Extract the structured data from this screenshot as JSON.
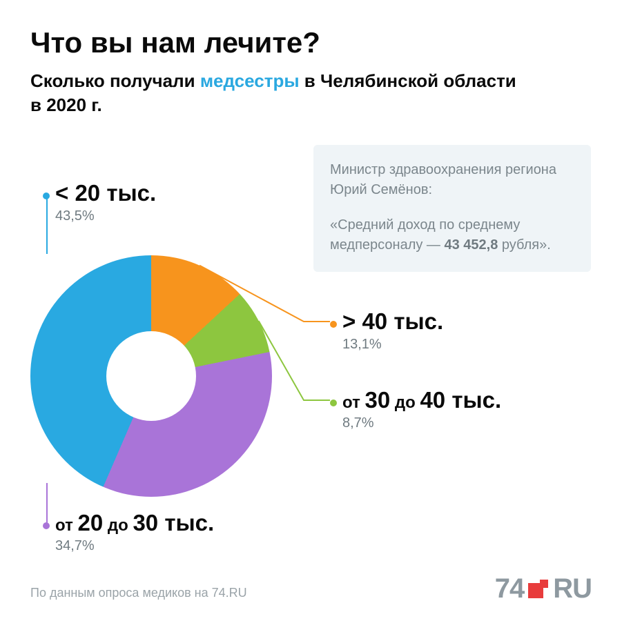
{
  "title": "Что вы нам лечите?",
  "subtitle_pre": "Сколько получали ",
  "subtitle_hl": "медсестры",
  "subtitle_post": " в Челябинской области в 2020 г.",
  "quote": {
    "attribution": "Министр здравоохранения региона Юрий Семёнов:",
    "text_pre": "«Средний доход по среднему медперсоналу — ",
    "figure": "43 452,8",
    "text_post": " рубля».",
    "bg_color": "#eff4f7",
    "text_color": "#7b868c"
  },
  "donut": {
    "type": "donut",
    "outer_radius": 175,
    "inner_radius": 65,
    "background_color": "#ffffff",
    "slices": [
      {
        "key": "lt20",
        "label_prefix": "",
        "label_big": "< 20 тыс.",
        "value": 43.5,
        "pct_label": "43,5%",
        "color": "#29a9e1"
      },
      {
        "key": "gt40",
        "label_prefix": "",
        "label_big": "> 40 тыс.",
        "value": 13.1,
        "pct_label": "13,1%",
        "color": "#f7941d"
      },
      {
        "key": "30to40",
        "label_prefix": "от ",
        "label_mid1": "30",
        "label_mid_txt": " до ",
        "label_mid2": "40",
        "label_suffix": " тыс.",
        "value": 8.7,
        "pct_label": "8,7%",
        "color": "#8dc63f"
      },
      {
        "key": "20to30",
        "label_prefix": "от ",
        "label_mid1": "20",
        "label_mid_txt": " до ",
        "label_mid2": "30",
        "label_suffix": " тыс.",
        "value": 34.7,
        "pct_label": "34,7%",
        "color": "#a974d8"
      }
    ]
  },
  "leaders": {
    "lt20": {
      "color": "#29a9e1"
    },
    "gt40": {
      "color": "#f7941d"
    },
    "30to40": {
      "color": "#8dc63f"
    },
    "20to30": {
      "color": "#a974d8"
    }
  },
  "footer": "По данным опроса медиков на 74.RU",
  "logo": {
    "text1": "74",
    "text2": "RU",
    "color": "#8e99a0",
    "accent": "#e83c3c"
  }
}
